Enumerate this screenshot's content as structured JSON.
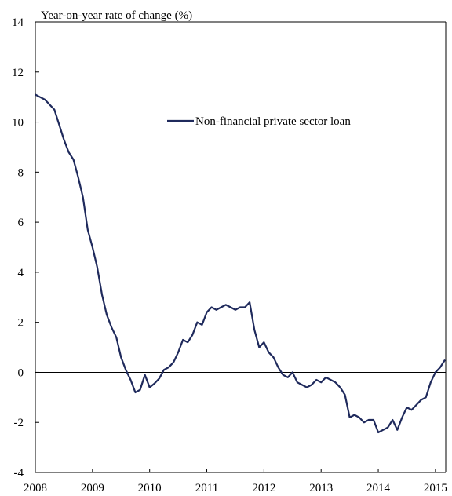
{
  "chart_data": {
    "type": "line",
    "ylabel": "Year-on-year rate of change (%)",
    "xlabel": "",
    "ylim": [
      -4,
      14
    ],
    "xlim": [
      2008,
      2015.18
    ],
    "yticks": [
      14,
      12,
      10,
      8,
      6,
      4,
      2,
      0,
      -2,
      -4
    ],
    "xticks": [
      2008,
      2009,
      2010,
      2011,
      2012,
      2013,
      2014,
      2015
    ],
    "ytick_labels": [
      "14",
      "12",
      "10",
      "8",
      "6",
      "4",
      "2",
      "0",
      "-2",
      "-4"
    ],
    "xtick_labels": [
      "2008",
      "2009",
      "2010",
      "2011",
      "2012",
      "2013",
      "2014",
      "2015"
    ],
    "grid": false,
    "legend_position": "upper-right",
    "series_color": "#1f2a5c",
    "series": [
      {
        "name": "Non-financial private sector loan",
        "x": [
          2008.0,
          2008.083,
          2008.167,
          2008.25,
          2008.333,
          2008.417,
          2008.5,
          2008.583,
          2008.667,
          2008.75,
          2008.833,
          2008.917,
          2009.0,
          2009.083,
          2009.167,
          2009.25,
          2009.333,
          2009.417,
          2009.5,
          2009.583,
          2009.667,
          2009.75,
          2009.833,
          2009.917,
          2010.0,
          2010.083,
          2010.167,
          2010.25,
          2010.333,
          2010.417,
          2010.5,
          2010.583,
          2010.667,
          2010.75,
          2010.833,
          2010.917,
          2011.0,
          2011.083,
          2011.167,
          2011.25,
          2011.333,
          2011.417,
          2011.5,
          2011.583,
          2011.667,
          2011.75,
          2011.833,
          2011.917,
          2012.0,
          2012.083,
          2012.167,
          2012.25,
          2012.333,
          2012.417,
          2012.5,
          2012.583,
          2012.667,
          2012.75,
          2012.833,
          2012.917,
          2013.0,
          2013.083,
          2013.167,
          2013.25,
          2013.333,
          2013.417,
          2013.5,
          2013.583,
          2013.667,
          2013.75,
          2013.833,
          2013.917,
          2014.0,
          2014.083,
          2014.167,
          2014.25,
          2014.333,
          2014.417,
          2014.5,
          2014.583,
          2014.667,
          2014.75,
          2014.833,
          2014.917,
          2015.0,
          2015.083,
          2015.167
        ],
        "values": [
          11.1,
          11.0,
          10.9,
          10.7,
          10.5,
          9.9,
          9.3,
          8.8,
          8.5,
          7.8,
          7.0,
          5.7,
          5.0,
          4.2,
          3.1,
          2.3,
          1.8,
          1.4,
          0.6,
          0.1,
          -0.3,
          -0.8,
          -0.7,
          -0.1,
          -0.6,
          -0.45,
          -0.25,
          0.1,
          0.2,
          0.4,
          0.8,
          1.3,
          1.2,
          1.5,
          2.0,
          1.9,
          2.4,
          2.6,
          2.5,
          2.6,
          2.7,
          2.6,
          2.5,
          2.6,
          2.6,
          2.8,
          1.7,
          1.0,
          1.2,
          0.8,
          0.6,
          0.2,
          -0.1,
          -0.2,
          0.0,
          -0.4,
          -0.5,
          -0.6,
          -0.5,
          -0.3,
          -0.4,
          -0.2,
          -0.3,
          -0.4,
          -0.6,
          -0.9,
          -1.8,
          -1.7,
          -1.8,
          -2.0,
          -1.9,
          -1.9,
          -2.4,
          -2.3,
          -2.2,
          -1.9,
          -2.3,
          -1.8,
          -1.4,
          -1.5,
          -1.3,
          -1.1,
          -1.0,
          -0.4,
          0.0,
          0.2,
          0.5
        ]
      }
    ]
  }
}
